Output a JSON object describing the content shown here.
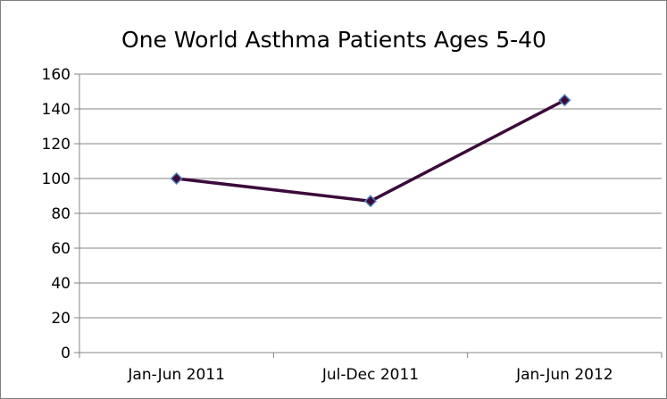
{
  "chart_data": {
    "type": "line",
    "title": "One World Asthma Patients Ages 5-40",
    "xlabel": "",
    "ylabel": "",
    "categories": [
      "Jan-Jun 2011",
      "Jul-Dec 2011",
      "Jan-Jun 2012"
    ],
    "series": [
      {
        "values": [
          100,
          87,
          145
        ]
      }
    ],
    "ylim": [
      0,
      160
    ],
    "yticks": [
      0,
      20,
      40,
      60,
      80,
      100,
      120,
      140,
      160
    ],
    "grid": true,
    "legend": "none",
    "colors": {
      "line": "#3b0a3a",
      "marker_fill": "#3b0a3a",
      "marker_stroke": "#4f81bd",
      "gridline": "#868686",
      "axis": "#868686",
      "border": "#7f7f7f"
    }
  }
}
